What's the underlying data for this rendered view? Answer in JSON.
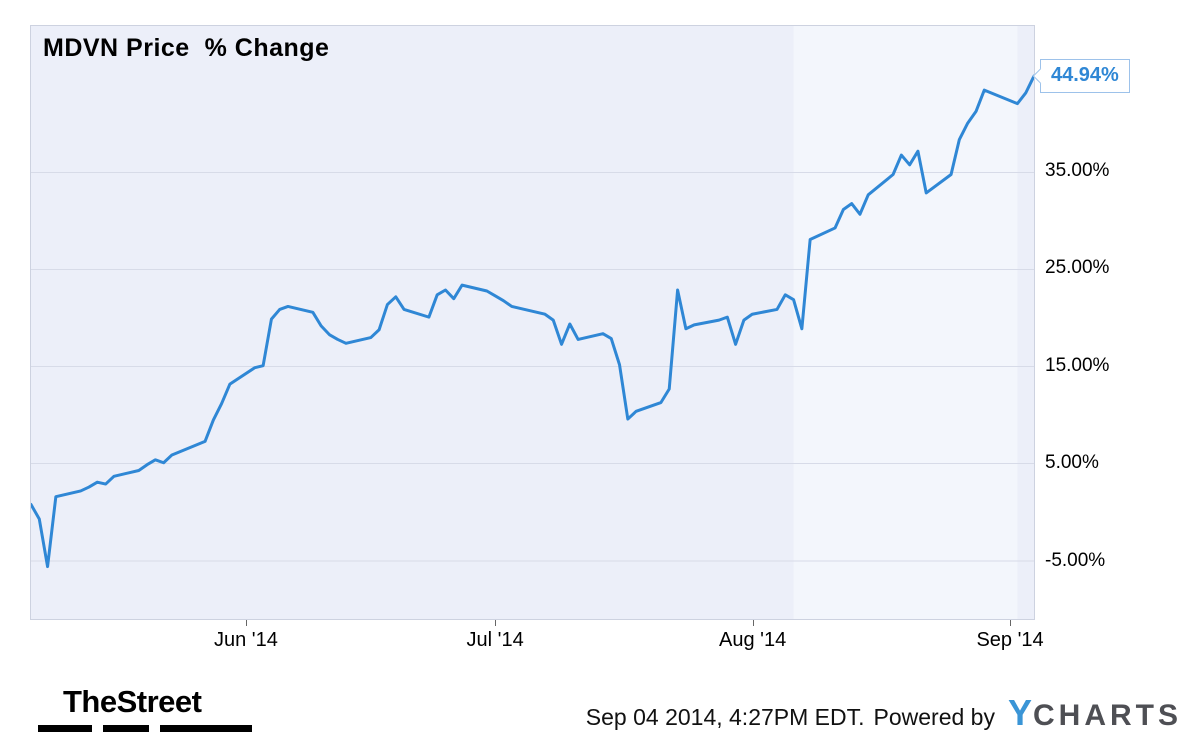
{
  "title": "MDVN Price  % Change",
  "annotation": {
    "last_value_label": "44.94%"
  },
  "footer": {
    "logo_text": "TheStreet",
    "timestamp": "Sep 04 2014, 4:27PM EDT.",
    "powered_by": "Powered by",
    "ycharts_y": "Y",
    "ycharts_rest": "CHARTS"
  },
  "colors": {
    "line": "#2f87d5",
    "label_text": "#2f87d5",
    "label_border": "#9dc2ea",
    "plot_bg": "#eceff9",
    "plot_bg_band": "#f3f6fc",
    "grid": "#d7dbe8",
    "ycharts_blue": "#3a95d6",
    "ycharts_gray": "#4e4f54"
  },
  "chart_data": {
    "type": "line",
    "title": "MDVN Price % Change",
    "series_name": "MDVN Price % Change",
    "ylabel": "Price % Change",
    "x_axis": {
      "start": "2014-05-06",
      "end": "2014-09-04",
      "tick_dates": [
        "2014-06-01",
        "2014-07-01",
        "2014-08-01",
        "2014-09-01"
      ],
      "tick_labels": [
        "Jun '14",
        "Jul '14",
        "Aug '14",
        "Sep '14"
      ]
    },
    "y_axis": {
      "min": -11.0,
      "max": 50.1,
      "tick_values": [
        35,
        25,
        15,
        5,
        -5
      ],
      "tick_labels": [
        "35.00%",
        "25.00%",
        "15.00%",
        "5.00%",
        "-5.00%"
      ]
    },
    "band": {
      "start": "2014-08-06",
      "end": "2014-09-02"
    },
    "x": [
      "2014-05-06",
      "2014-05-07",
      "2014-05-08",
      "2014-05-09",
      "2014-05-12",
      "2014-05-13",
      "2014-05-14",
      "2014-05-15",
      "2014-05-16",
      "2014-05-19",
      "2014-05-20",
      "2014-05-21",
      "2014-05-22",
      "2014-05-23",
      "2014-05-27",
      "2014-05-28",
      "2014-05-29",
      "2014-05-30",
      "2014-06-02",
      "2014-06-03",
      "2014-06-04",
      "2014-06-05",
      "2014-06-06",
      "2014-06-09",
      "2014-06-10",
      "2014-06-11",
      "2014-06-12",
      "2014-06-13",
      "2014-06-16",
      "2014-06-17",
      "2014-06-18",
      "2014-06-19",
      "2014-06-20",
      "2014-06-23",
      "2014-06-24",
      "2014-06-25",
      "2014-06-26",
      "2014-06-27",
      "2014-06-30",
      "2014-07-01",
      "2014-07-02",
      "2014-07-03",
      "2014-07-07",
      "2014-07-08",
      "2014-07-09",
      "2014-07-10",
      "2014-07-11",
      "2014-07-14",
      "2014-07-15",
      "2014-07-16",
      "2014-07-17",
      "2014-07-18",
      "2014-07-21",
      "2014-07-22",
      "2014-07-23",
      "2014-07-24",
      "2014-07-25",
      "2014-07-28",
      "2014-07-29",
      "2014-07-30",
      "2014-07-31",
      "2014-08-01",
      "2014-08-04",
      "2014-08-05",
      "2014-08-06",
      "2014-08-07",
      "2014-08-08",
      "2014-08-11",
      "2014-08-12",
      "2014-08-13",
      "2014-08-14",
      "2014-08-15",
      "2014-08-18",
      "2014-08-19",
      "2014-08-20",
      "2014-08-21",
      "2014-08-22",
      "2014-08-25",
      "2014-08-26",
      "2014-08-27",
      "2014-08-28",
      "2014-08-29",
      "2014-09-02",
      "2014-09-03",
      "2014-09-04"
    ],
    "y": [
      0.8,
      -0.7,
      -5.6,
      1.6,
      2.2,
      2.6,
      3.1,
      2.9,
      3.7,
      4.3,
      4.9,
      5.4,
      5.1,
      5.9,
      7.3,
      9.5,
      11.2,
      13.2,
      14.9,
      15.1,
      19.9,
      20.9,
      21.2,
      20.6,
      19.2,
      18.3,
      17.8,
      17.4,
      18.0,
      18.8,
      21.4,
      22.2,
      20.9,
      20.1,
      22.4,
      22.9,
      22.0,
      23.4,
      22.8,
      22.3,
      21.8,
      21.2,
      20.4,
      19.8,
      17.3,
      19.4,
      17.8,
      18.4,
      17.9,
      15.2,
      9.6,
      10.4,
      11.3,
      12.7,
      22.9,
      18.9,
      19.3,
      19.8,
      20.1,
      17.3,
      19.8,
      20.4,
      20.9,
      22.4,
      21.9,
      18.9,
      28.1,
      29.3,
      31.2,
      31.8,
      30.7,
      32.7,
      34.8,
      36.8,
      35.8,
      37.2,
      32.9,
      34.8,
      38.4,
      40.1,
      41.3,
      43.5,
      42.1,
      43.2,
      44.94
    ],
    "last_value": 44.94
  }
}
